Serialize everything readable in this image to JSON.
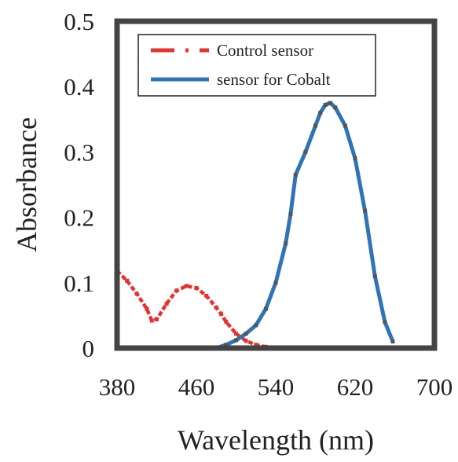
{
  "chart_data": {
    "type": "line",
    "title": "",
    "xlabel": "Wavelength (nm)",
    "ylabel": "Absorbance",
    "xlim": [
      380,
      700
    ],
    "ylim": [
      0,
      0.5
    ],
    "x_ticks": [
      380,
      460,
      540,
      620,
      700
    ],
    "x_tick_labels": [
      "380",
      "460",
      "540",
      "620",
      "700"
    ],
    "y_ticks": [
      0,
      0.1,
      0.2,
      0.3,
      0.4,
      0.5
    ],
    "y_tick_labels": [
      "0",
      "0.1",
      "0.2",
      "0.3",
      "0.4",
      "0.5"
    ],
    "grid": false,
    "legend_position": "top-left",
    "series": [
      {
        "name": "Control sensor",
        "color": "#e8312e",
        "style": "dash-dot",
        "x": [
          380,
          390,
          400,
          410,
          415,
          420,
          430,
          440,
          450,
          460,
          470,
          480,
          485,
          490,
          500,
          510,
          520,
          530,
          540,
          560,
          580,
          600,
          620,
          630
        ],
        "y": [
          0.118,
          0.103,
          0.083,
          0.06,
          0.042,
          0.044,
          0.068,
          0.088,
          0.095,
          0.092,
          0.08,
          0.062,
          0.052,
          0.04,
          0.022,
          0.011,
          0.005,
          0.002,
          0.001,
          0.001,
          0.001,
          0.001,
          0.001,
          0.001
        ]
      },
      {
        "name": "sensor for Cobalt",
        "color": "#2f74b8",
        "style": "solid",
        "x": [
          470,
          480,
          490,
          500,
          510,
          520,
          530,
          540,
          550,
          555,
          560,
          570,
          580,
          585,
          590,
          595,
          600,
          610,
          620,
          630,
          640,
          650,
          658
        ],
        "y": [
          0.0,
          0.0,
          0.005,
          0.012,
          0.022,
          0.035,
          0.06,
          0.1,
          0.16,
          0.205,
          0.265,
          0.3,
          0.34,
          0.36,
          0.372,
          0.375,
          0.368,
          0.34,
          0.29,
          0.21,
          0.11,
          0.04,
          0.01
        ]
      }
    ]
  }
}
